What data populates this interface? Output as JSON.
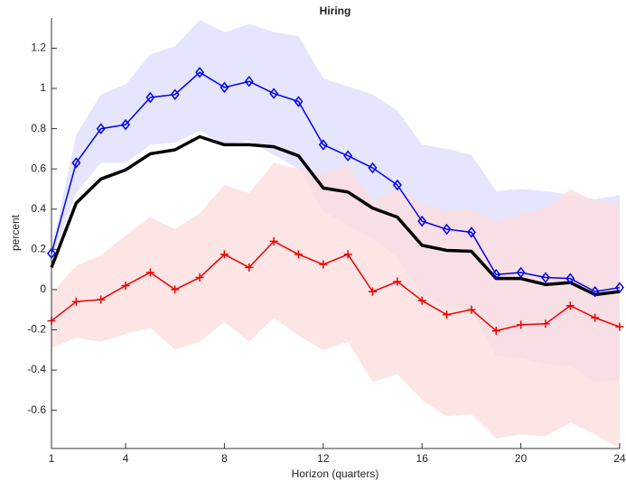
{
  "chart_data": {
    "type": "line",
    "title": "Hiring",
    "xlabel": "Horizon (quarters)",
    "ylabel": "percent",
    "x": [
      1,
      2,
      3,
      4,
      5,
      6,
      7,
      8,
      9,
      10,
      11,
      12,
      13,
      14,
      15,
      16,
      17,
      18,
      19,
      20,
      21,
      22,
      23,
      24
    ],
    "xlim": [
      1,
      24
    ],
    "xticks": [
      1,
      4,
      8,
      12,
      16,
      20,
      24
    ],
    "ylim": [
      -0.79,
      1.35
    ],
    "yticks": [
      -0.6,
      -0.4,
      -0.2,
      0,
      0.2,
      0.4,
      0.6,
      0.8,
      1,
      1.2
    ],
    "bands": [
      {
        "color": "#dcdcfc",
        "upper": [
          0.2,
          0.77,
          0.97,
          1.02,
          1.17,
          1.21,
          1.34,
          1.28,
          1.32,
          1.28,
          1.26,
          1.05,
          1.01,
          0.97,
          0.89,
          0.72,
          0.7,
          0.67,
          0.49,
          0.5,
          0.49,
          0.47,
          0.45,
          0.47
        ],
        "lower": [
          0.15,
          0.48,
          0.63,
          0.63,
          0.72,
          0.73,
          0.79,
          0.72,
          0.74,
          0.67,
          0.6,
          0.39,
          0.32,
          0.25,
          0.16,
          -0.03,
          -0.08,
          -0.1,
          -0.33,
          -0.34,
          -0.37,
          -0.38,
          -0.46,
          -0.45
        ]
      },
      {
        "color": "#fcdcdc",
        "upper": [
          -0.02,
          0.12,
          0.17,
          0.27,
          0.36,
          0.3,
          0.38,
          0.52,
          0.48,
          0.63,
          0.6,
          0.58,
          0.62,
          0.44,
          0.5,
          0.43,
          0.39,
          0.4,
          0.34,
          0.38,
          0.4,
          0.5,
          0.44,
          0.43
        ],
        "lower": [
          -0.29,
          -0.24,
          -0.26,
          -0.22,
          -0.19,
          -0.3,
          -0.26,
          -0.16,
          -0.26,
          -0.14,
          -0.23,
          -0.3,
          -0.26,
          -0.46,
          -0.42,
          -0.55,
          -0.63,
          -0.62,
          -0.74,
          -0.72,
          -0.73,
          -0.66,
          -0.72,
          -0.79
        ]
      }
    ],
    "series": [
      {
        "color": "#000000",
        "values": [
          0.11,
          0.43,
          0.55,
          0.595,
          0.675,
          0.695,
          0.76,
          0.72,
          0.72,
          0.71,
          0.665,
          0.505,
          0.485,
          0.405,
          0.36,
          0.22,
          0.195,
          0.19,
          0.055,
          0.055,
          0.025,
          0.035,
          -0.025,
          -0.01
        ]
      },
      {
        "color": "#0000ee",
        "marker": "diamond",
        "values": [
          0.18,
          0.63,
          0.8,
          0.82,
          0.955,
          0.97,
          1.08,
          1.005,
          1.035,
          0.975,
          0.935,
          0.72,
          0.665,
          0.605,
          0.52,
          0.34,
          0.3,
          0.285,
          0.075,
          0.085,
          0.06,
          0.055,
          -0.01,
          0.01
        ]
      },
      {
        "color": "#ee0000",
        "marker": "plus",
        "values": [
          -0.155,
          -0.06,
          -0.05,
          0.02,
          0.085,
          0.0,
          0.06,
          0.175,
          0.11,
          0.24,
          0.175,
          0.125,
          0.175,
          -0.01,
          0.04,
          -0.055,
          -0.125,
          -0.1,
          -0.205,
          -0.175,
          -0.17,
          -0.08,
          -0.14,
          -0.185
        ]
      }
    ]
  }
}
